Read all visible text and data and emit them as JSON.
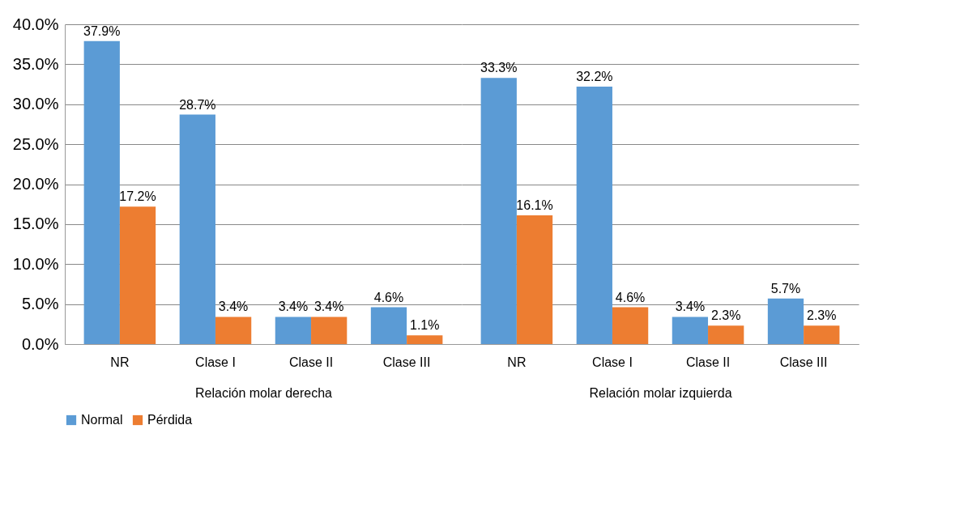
{
  "chart_data": {
    "type": "bar",
    "categories": [
      "NR",
      "Clase I",
      "Clase II",
      "Clase III",
      "NR",
      "Clase I",
      "Clase II",
      "Clase III"
    ],
    "series": [
      {
        "name": "Normal",
        "color": "#5b9bd5",
        "values": [
          37.9,
          28.7,
          3.4,
          4.6,
          33.3,
          32.2,
          3.4,
          5.7
        ],
        "value_labels": [
          "37.9%",
          "28.7%",
          "3.4%",
          "4.6%",
          "33.3%",
          "32.2%",
          "3.4%",
          "5.7%"
        ]
      },
      {
        "name": "Pérdida",
        "color": "#ed7d31",
        "values": [
          17.2,
          3.4,
          3.4,
          1.1,
          16.1,
          4.6,
          2.3,
          2.3
        ],
        "value_labels": [
          "17.2%",
          "3.4%",
          "3.4%",
          "1.1%",
          "16.1%",
          "4.6%",
          "2.3%",
          "2.3%"
        ]
      }
    ],
    "annotations": [
      "Relación molar derecha",
      "Relación molar izquierda"
    ],
    "ylim": [
      0,
      40
    ],
    "yticks": [
      {
        "value": 0,
        "label": "0.0%"
      },
      {
        "value": 5,
        "label": "5.0%"
      },
      {
        "value": 10,
        "label": "10.0%"
      },
      {
        "value": 15,
        "label": "15.0%"
      },
      {
        "value": 20,
        "label": "20.0%"
      },
      {
        "value": 25,
        "label": "25.0%"
      },
      {
        "value": 30,
        "label": "30.0%"
      },
      {
        "value": 35,
        "label": "35.0%"
      },
      {
        "value": 40,
        "label": "40.0%"
      }
    ],
    "grid": "y",
    "legend": "bottom"
  }
}
